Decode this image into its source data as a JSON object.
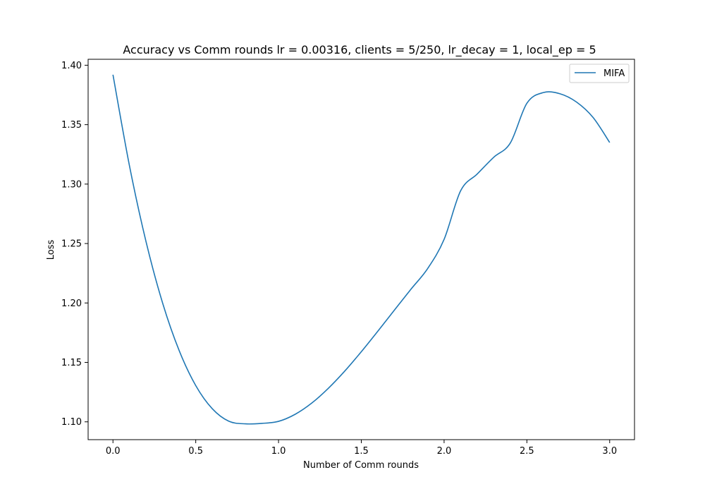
{
  "chart_data": {
    "type": "line",
    "title": "Accuracy vs Comm rounds lr = 0.00316, clients = 5/250, lr_decay = 1, local_ep = 5",
    "xlabel": "Number of Comm rounds",
    "ylabel": "Loss",
    "xlim": [
      -0.15,
      3.15
    ],
    "ylim": [
      1.085,
      1.405
    ],
    "x_ticks": [
      0.0,
      0.5,
      1.0,
      1.5,
      2.0,
      2.5,
      3.0
    ],
    "x_tick_labels": [
      "0.0",
      "0.5",
      "1.0",
      "1.5",
      "2.0",
      "2.5",
      "3.0"
    ],
    "y_ticks": [
      1.1,
      1.15,
      1.2,
      1.25,
      1.3,
      1.35,
      1.4
    ],
    "y_tick_labels": [
      "1.10",
      "1.15",
      "1.20",
      "1.25",
      "1.30",
      "1.35",
      "1.40"
    ],
    "grid": false,
    "legend_position": "top-right",
    "series": [
      {
        "name": "MIFA",
        "color": "#1f77b4",
        "x": [
          0.0,
          0.1,
          0.2,
          0.3,
          0.4,
          0.5,
          0.6,
          0.7,
          0.8,
          0.9,
          1.0,
          1.1,
          1.2,
          1.3,
          1.4,
          1.5,
          1.6,
          1.7,
          1.8,
          1.9,
          2.0,
          2.1,
          2.2,
          2.3,
          2.4,
          2.5,
          2.6,
          2.7,
          2.8,
          2.9,
          3.0
        ],
        "y": [
          1.392,
          1.3152,
          1.2514,
          1.1999,
          1.1599,
          1.1305,
          1.111,
          1.1005,
          1.0983,
          1.0987,
          1.1004,
          1.1063,
          1.1157,
          1.1281,
          1.1427,
          1.159,
          1.1763,
          1.194,
          1.2116,
          1.2288,
          1.2535,
          1.2944,
          1.3085,
          1.3226,
          1.3346,
          1.368,
          1.377,
          1.376,
          1.369,
          1.356,
          1.335
        ]
      }
    ]
  }
}
